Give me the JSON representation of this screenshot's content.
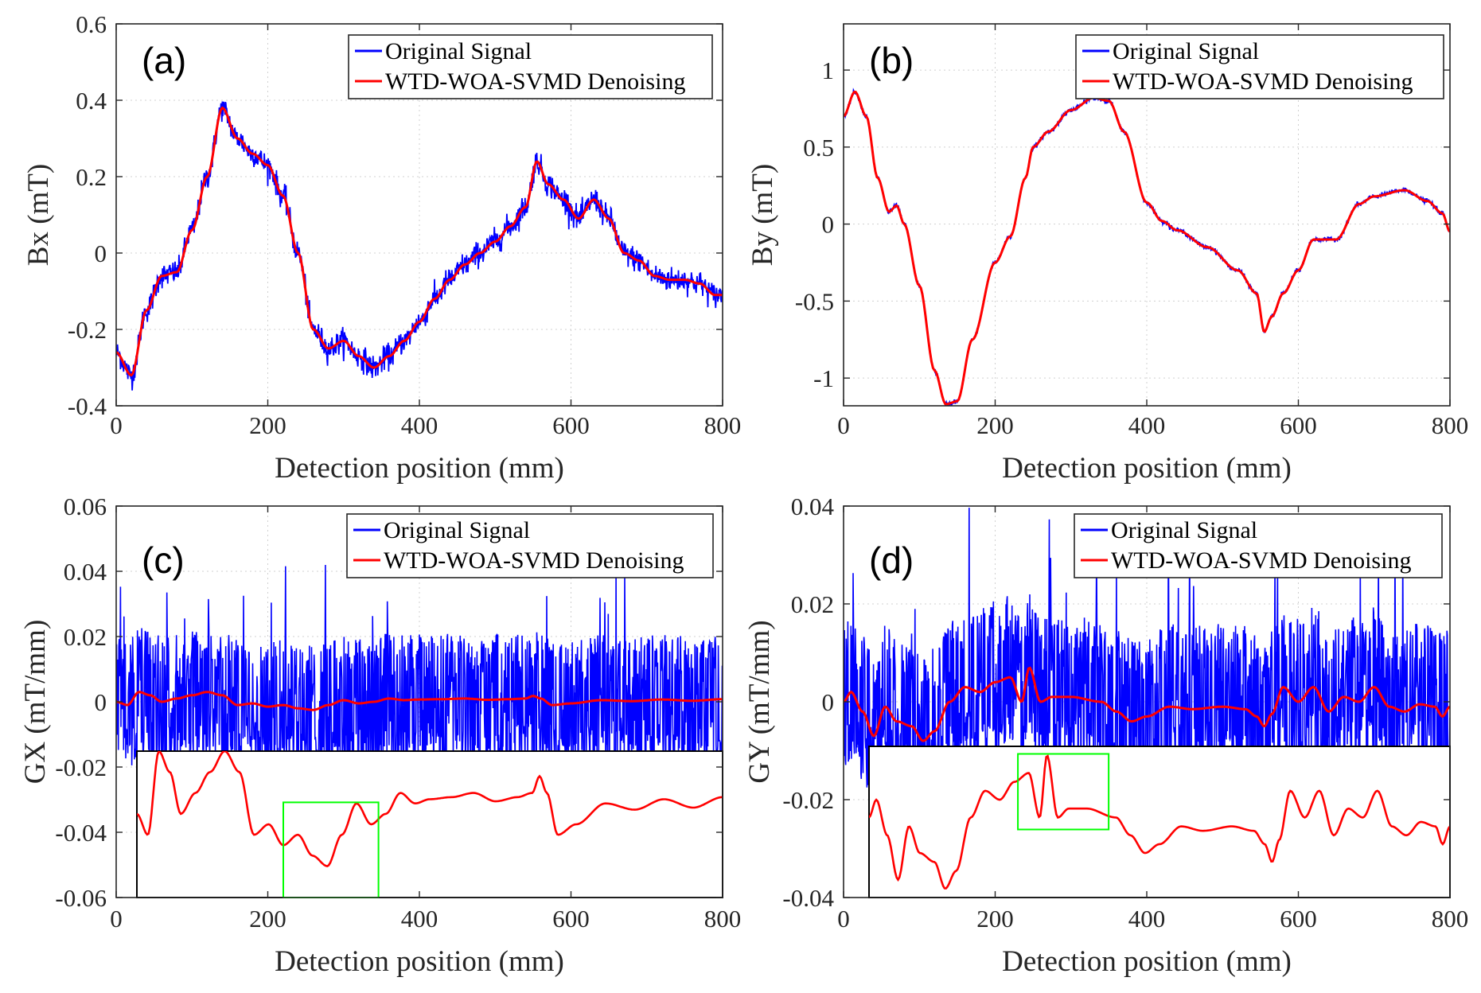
{
  "legend": {
    "original": "Original Signal",
    "denoised": "WTD-WOA-SVMD Denoising"
  },
  "colors": {
    "original": "#0000ff",
    "denoised": "#ff0000",
    "zoom_box": "#00ff00"
  },
  "chart_data": [
    {
      "id": "a",
      "type": "line",
      "panel_label": "(a)",
      "xlabel": "Detection position (mm)",
      "ylabel": "Bx (mT)",
      "xlim": [
        0,
        800
      ],
      "ylim": [
        -0.4,
        0.6
      ],
      "xticks": [
        0,
        200,
        400,
        600,
        800
      ],
      "yticks": [
        -0.4,
        -0.2,
        0,
        0.2,
        0.4,
        0.6
      ],
      "ytick_labels": [
        "-0.4",
        "-0.2",
        "0",
        "0.2",
        "0.4",
        "0.6"
      ],
      "grid": true,
      "legend_position": "top-right",
      "noise_amplitude": 0.045,
      "series": [
        {
          "name": "WTD-WOA-SVMD Denoising",
          "x": [
            0,
            20,
            40,
            60,
            80,
            100,
            120,
            140,
            160,
            180,
            200,
            220,
            240,
            260,
            280,
            300,
            320,
            340,
            360,
            380,
            400,
            420,
            440,
            460,
            480,
            500,
            520,
            540,
            555,
            570,
            590,
            610,
            630,
            650,
            670,
            690,
            710,
            730,
            750,
            770,
            790,
            800
          ],
          "y": [
            -0.26,
            -0.32,
            -0.15,
            -0.06,
            -0.05,
            0.06,
            0.2,
            0.38,
            0.3,
            0.26,
            0.23,
            0.15,
            0.0,
            -0.2,
            -0.25,
            -0.23,
            -0.27,
            -0.3,
            -0.27,
            -0.23,
            -0.18,
            -0.12,
            -0.07,
            -0.03,
            0.0,
            0.03,
            0.07,
            0.12,
            0.24,
            0.18,
            0.14,
            0.09,
            0.14,
            0.09,
            0.0,
            -0.02,
            -0.06,
            -0.07,
            -0.07,
            -0.08,
            -0.11,
            -0.11
          ]
        }
      ]
    },
    {
      "id": "b",
      "type": "line",
      "panel_label": "(b)",
      "xlabel": "Detection position (mm)",
      "ylabel": "By (mT)",
      "xlim": [
        0,
        800
      ],
      "ylim": [
        -1.18,
        1.3
      ],
      "xticks": [
        0,
        200,
        400,
        600,
        800
      ],
      "yticks": [
        -1,
        -0.5,
        0,
        0.5,
        1
      ],
      "ytick_labels": [
        "-1",
        "-0.5",
        "0",
        "0.5",
        "1"
      ],
      "grid": true,
      "legend_position": "top-right",
      "noise_amplitude": 0.02,
      "series": [
        {
          "name": "WTD-WOA-SVMD Denoising",
          "x": [
            0,
            15,
            30,
            45,
            60,
            70,
            80,
            100,
            120,
            135,
            150,
            170,
            200,
            220,
            240,
            250,
            270,
            300,
            330,
            350,
            370,
            400,
            420,
            440,
            480,
            520,
            545,
            555,
            565,
            580,
            600,
            620,
            650,
            680,
            700,
            740,
            770,
            790,
            800
          ],
          "y": [
            0.7,
            0.86,
            0.7,
            0.3,
            0.08,
            0.12,
            0.0,
            -0.4,
            -0.95,
            -1.17,
            -1.15,
            -0.75,
            -0.25,
            -0.08,
            0.3,
            0.5,
            0.6,
            0.74,
            0.82,
            0.8,
            0.6,
            0.14,
            0.02,
            -0.04,
            -0.15,
            -0.3,
            -0.45,
            -0.7,
            -0.6,
            -0.45,
            -0.3,
            -0.1,
            -0.1,
            0.13,
            0.18,
            0.22,
            0.15,
            0.07,
            -0.05
          ]
        }
      ]
    },
    {
      "id": "c",
      "type": "line",
      "panel_label": "(c)",
      "xlabel": "Detection position (mm)",
      "ylabel": "GX (mT/mm)",
      "xlim": [
        0,
        800
      ],
      "ylim": [
        -0.06,
        0.06
      ],
      "xticks": [
        0,
        200,
        400,
        600,
        800
      ],
      "yticks": [
        -0.06,
        -0.04,
        -0.02,
        0,
        0.02,
        0.04,
        0.06
      ],
      "ytick_labels": [
        "-0.06",
        "-0.04",
        "-0.02",
        "0",
        "0.02",
        "0.04",
        "0.06"
      ],
      "grid": true,
      "legend_position": "top-right",
      "noise_amplitude": 0.025,
      "noise_band": [
        -0.02,
        0.02
      ],
      "series": [
        {
          "name": "WTD-WOA-SVMD Denoising",
          "x": [
            0,
            15,
            30,
            45,
            60,
            80,
            100,
            120,
            140,
            160,
            180,
            200,
            220,
            240,
            260,
            280,
            300,
            320,
            340,
            360,
            380,
            400,
            430,
            460,
            490,
            520,
            540,
            550,
            560,
            575,
            600,
            640,
            680,
            720,
            760,
            800
          ],
          "y": [
            0,
            -0.001,
            0.003,
            0.002,
            0.0,
            0.001,
            0.002,
            0.003,
            0.002,
            -0.001,
            -0.0005,
            -0.0015,
            -0.001,
            -0.002,
            -0.0025,
            -0.001,
            0.0005,
            -0.0005,
            0.0,
            0.001,
            0.0005,
            0.0007,
            0.0008,
            0.001,
            0.0006,
            0.0008,
            0.001,
            0.0018,
            0.001,
            -0.001,
            -0.0005,
            0.0005,
            0.0002,
            0.0007,
            0.0003,
            0.0008
          ]
        }
      ],
      "inset": {
        "xlim": [
          0,
          800
        ],
        "ylim": [
          -0.004,
          0.003
        ],
        "zoom_box_x": [
          200,
          330
        ]
      }
    },
    {
      "id": "d",
      "type": "line",
      "panel_label": "(d)",
      "xlabel": "Detection position (mm)",
      "ylabel": "GY (mT/mm)",
      "xlim": [
        0,
        800
      ],
      "ylim": [
        -0.04,
        0.04
      ],
      "xticks": [
        0,
        200,
        400,
        600,
        800
      ],
      "yticks": [
        -0.04,
        -0.02,
        0,
        0.02,
        0.04
      ],
      "ytick_labels": [
        "-0.04",
        "-0.02",
        "0",
        "0.02",
        "0.04"
      ],
      "grid": true,
      "legend_position": "top-right",
      "noise_amplitude": 0.016,
      "noise_band": [
        -0.014,
        0.017
      ],
      "series": [
        {
          "name": "WTD-WOA-SVMD Denoising",
          "x": [
            0,
            10,
            25,
            40,
            55,
            70,
            90,
            105,
            120,
            140,
            160,
            180,
            200,
            220,
            235,
            245,
            260,
            275,
            300,
            340,
            360,
            380,
            400,
            430,
            460,
            500,
            530,
            545,
            555,
            565,
            580,
            600,
            620,
            640,
            660,
            680,
            700,
            720,
            740,
            760,
            780,
            790,
            800
          ],
          "y": [
            0,
            0.002,
            -0.002,
            -0.007,
            -0.001,
            -0.004,
            -0.005,
            -0.008,
            -0.006,
            0.0,
            0.003,
            0.002,
            0.004,
            0.005,
            0.0,
            0.007,
            0.0,
            0.001,
            0.001,
            0.0,
            -0.002,
            -0.004,
            -0.003,
            -0.001,
            -0.0015,
            -0.001,
            -0.0015,
            -0.003,
            -0.005,
            -0.0025,
            0.003,
            0.0,
            0.003,
            -0.002,
            0.001,
            0.0,
            0.003,
            -0.001,
            -0.002,
            -0.0005,
            -0.001,
            -0.003,
            -0.001
          ]
        }
      ],
      "inset": {
        "xlim": [
          0,
          800
        ],
        "ylim": [
          -0.009,
          0.008
        ],
        "zoom_box_x": [
          205,
          330
        ]
      }
    }
  ]
}
